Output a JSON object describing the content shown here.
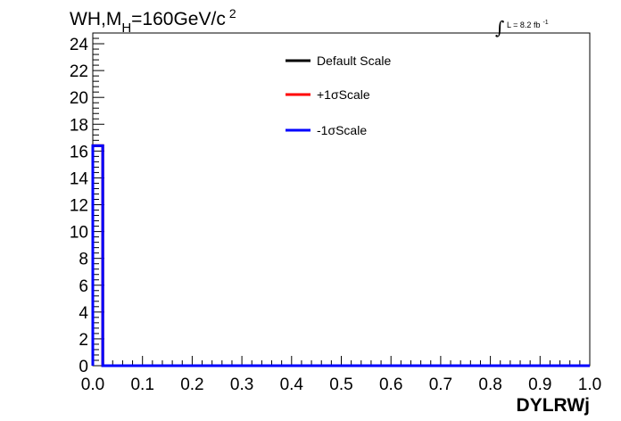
{
  "chart_data": {
    "type": "line",
    "title_main": "WH,M",
    "title_sub": "H",
    "title_rest": "=160GeV/c",
    "title_sup": "2",
    "lumi_integral": "∫",
    "lumi_text": "L = 8.2 fb",
    "lumi_sup": "-1",
    "xlabel": "DYLRWj",
    "ylabel": "",
    "xlim": [
      0.0,
      1.0
    ],
    "ylim": [
      0,
      24.8
    ],
    "xticks": [
      "0.0",
      "0.1",
      "0.2",
      "0.3",
      "0.4",
      "0.5",
      "0.6",
      "0.7",
      "0.8",
      "0.9",
      "1.0"
    ],
    "yticks": [
      "0",
      "2",
      "4",
      "6",
      "8",
      "10",
      "12",
      "14",
      "16",
      "18",
      "20",
      "22",
      "24"
    ],
    "bin_edges": [
      0.0,
      0.02,
      1.0
    ],
    "legend_position": "top-center",
    "series": [
      {
        "name": "Default Scale",
        "color": "#000000",
        "values": [
          16.4,
          0
        ]
      },
      {
        "name": "+1σScale",
        "color": "#ff0000",
        "values": [
          16.4,
          0
        ]
      },
      {
        "name": "-1σScale",
        "color": "#0000ff",
        "values": [
          16.4,
          0
        ]
      }
    ]
  }
}
